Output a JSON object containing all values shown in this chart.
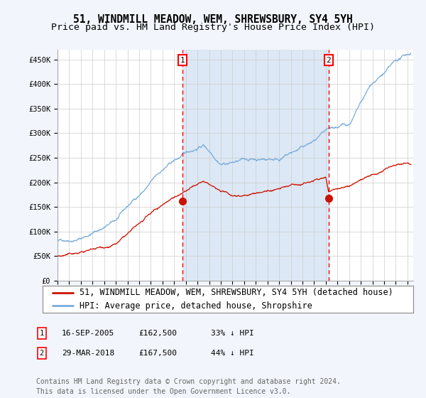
{
  "title": "51, WINDMILL MEADOW, WEM, SHREWSBURY, SY4 5YH",
  "subtitle": "Price paid vs. HM Land Registry's House Price Index (HPI)",
  "ylim": [
    0,
    470000
  ],
  "yticks": [
    0,
    50000,
    100000,
    150000,
    200000,
    250000,
    300000,
    350000,
    400000,
    450000
  ],
  "xlim_start": 1995.0,
  "xlim_end": 2025.5,
  "background_color": "#f2f5fb",
  "plot_bg_color": "#ffffff",
  "shaded_region": [
    2005.71,
    2018.25
  ],
  "shaded_color": "#dce8f5",
  "marker1_date": 2005.71,
  "marker1_value": 162500,
  "marker2_date": 2018.25,
  "marker2_value": 167500,
  "vline1_date": 2005.71,
  "vline2_date": 2018.25,
  "hpi_color": "#7aaddb",
  "sale_color": "#cc1100",
  "legend_label_sale": "51, WINDMILL MEADOW, WEM, SHREWSBURY, SY4 5YH (detached house)",
  "legend_label_hpi": "HPI: Average price, detached house, Shropshire",
  "annotation1_label": "1",
  "annotation1_date": "16-SEP-2005",
  "annotation1_price": "£162,500",
  "annotation1_hpi": "33% ↓ HPI",
  "annotation2_label": "2",
  "annotation2_date": "29-MAR-2018",
  "annotation2_price": "£167,500",
  "annotation2_hpi": "44% ↓ HPI",
  "footer": "Contains HM Land Registry data © Crown copyright and database right 2024.\nThis data is licensed under the Open Government Licence v3.0.",
  "title_fontsize": 10.5,
  "subtitle_fontsize": 9.5,
  "tick_fontsize": 7.5,
  "legend_fontsize": 8.5,
  "footer_fontsize": 7.0
}
